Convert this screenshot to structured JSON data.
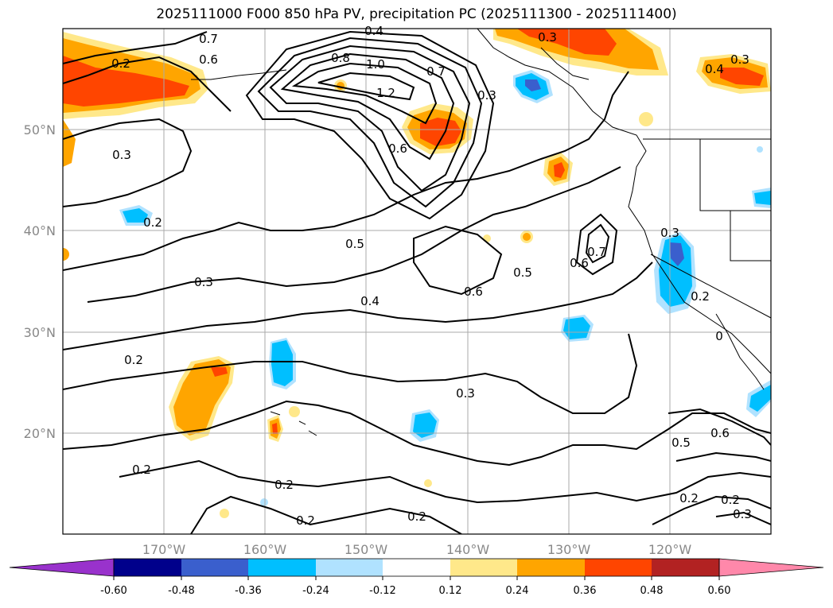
{
  "title": "2025111000 F000 850 hPa PV, precipitation PC (2025111300 - 2025111400)",
  "map": {
    "lat_labels": [
      "50°N",
      "40°N",
      "30°N",
      "20°N"
    ],
    "lon_labels": [
      "170°W",
      "160°W",
      "150°W",
      "140°W",
      "130°W",
      "120°W"
    ],
    "contour_labels": [
      {
        "text": "0.4"
      },
      {
        "text": "0.7"
      },
      {
        "text": "0.6"
      },
      {
        "text": "0.8"
      },
      {
        "text": "1.0"
      },
      {
        "text": "1.2"
      },
      {
        "text": "0.7"
      },
      {
        "text": "0.3"
      },
      {
        "text": "0.3"
      },
      {
        "text": "0.2"
      },
      {
        "text": "0.3"
      },
      {
        "text": "0.6"
      },
      {
        "text": "0.2"
      },
      {
        "text": "0.5"
      },
      {
        "text": "0.3"
      },
      {
        "text": "0.4"
      },
      {
        "text": "0.6"
      },
      {
        "text": "0.5"
      },
      {
        "text": "0.6"
      },
      {
        "text": "0.7"
      },
      {
        "text": "0.3"
      },
      {
        "text": "0.2"
      },
      {
        "text": "0.2"
      },
      {
        "text": "0.3"
      },
      {
        "text": "0.2"
      },
      {
        "text": "0.2"
      },
      {
        "text": "0.2"
      },
      {
        "text": "0.2"
      },
      {
        "text": "0.5"
      },
      {
        "text": "0.6"
      },
      {
        "text": "0.2"
      },
      {
        "text": "0.2"
      },
      {
        "text": "0.3"
      },
      {
        "text": "0.3"
      },
      {
        "text": "0.4"
      },
      {
        "text": "0"
      }
    ]
  },
  "colorbar": {
    "colors": [
      "#9932cc",
      "#00008b",
      "#3a5fcd",
      "#00bfff",
      "#b0e2ff",
      "#ffffff",
      "#ffe88a",
      "#ffa500",
      "#ff4500",
      "#b22222",
      "#ff88aa"
    ],
    "tick_labels": [
      "-0.60",
      "-0.48",
      "-0.36",
      "-0.24",
      "-0.12",
      "0.12",
      "0.24",
      "0.36",
      "0.48",
      "0.60"
    ]
  }
}
